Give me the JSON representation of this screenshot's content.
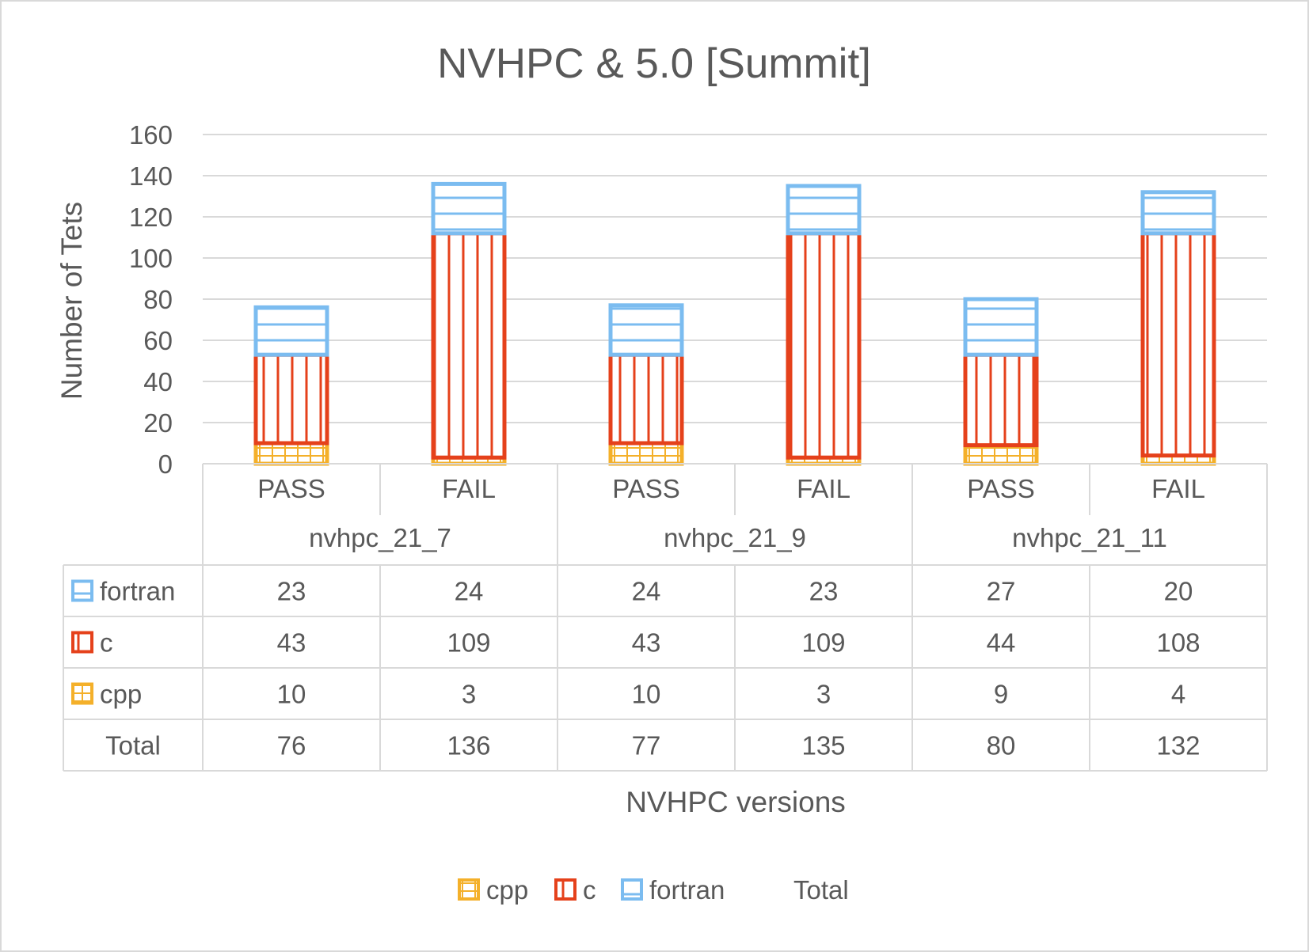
{
  "chart_data": {
    "type": "bar",
    "stacked": true,
    "title": "NVHPC & 5.0 [Summit]",
    "xlabel": "NVHPC versions",
    "ylabel": "Number of Tets",
    "ylim": [
      0,
      160
    ],
    "yticks": [
      0,
      20,
      40,
      60,
      80,
      100,
      120,
      140,
      160
    ],
    "grid": true,
    "legend_position": "bottom",
    "groups": [
      "nvhpc_21_7",
      "nvhpc_21_9",
      "nvhpc_21_11"
    ],
    "categories": [
      "PASS",
      "FAIL",
      "PASS",
      "FAIL",
      "PASS",
      "FAIL"
    ],
    "series": [
      {
        "name": "cpp",
        "values": [
          10,
          3,
          10,
          3,
          9,
          4
        ],
        "color": "#F4B02A"
      },
      {
        "name": "c",
        "values": [
          43,
          109,
          43,
          109,
          44,
          108
        ],
        "color": "#E5411B"
      },
      {
        "name": "fortran",
        "values": [
          23,
          24,
          24,
          23,
          27,
          20
        ],
        "color": "#7BBCF0"
      }
    ],
    "total": {
      "name": "Total",
      "values": [
        76,
        136,
        77,
        135,
        80,
        132
      ]
    },
    "table_row_order": [
      "fortran",
      "c",
      "cpp",
      "Total"
    ],
    "legend_order": [
      "cpp",
      "c",
      "fortran",
      "Total"
    ]
  }
}
